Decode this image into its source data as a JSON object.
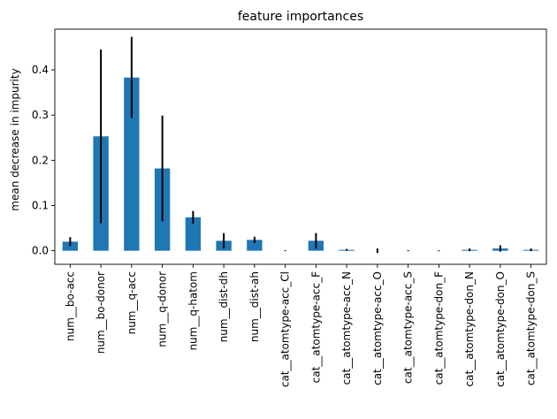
{
  "chart_data": {
    "type": "bar",
    "title": "feature importances",
    "xlabel": "",
    "ylabel": "mean decrease in impurity",
    "ylim": [
      -0.03,
      0.49
    ],
    "yticks": [
      0.0,
      0.1,
      0.2,
      0.3,
      0.4
    ],
    "ytick_labels": [
      "0.0",
      "0.1",
      "0.2",
      "0.3",
      "0.4"
    ],
    "grid": false,
    "legend": "none",
    "bar_color": "#1f77b4",
    "error_color": "#000000",
    "categories": [
      "num__bo-acc",
      "num__bo-donor",
      "num__q-acc",
      "num__q-donor",
      "num__q-hatom",
      "num__dist-dh",
      "num__dist-ah",
      "cat__atomtype-acc_Cl",
      "cat__atomtype-acc_F",
      "cat__atomtype-acc_N",
      "cat__atomtype-acc_O",
      "cat__atomtype-acc_S",
      "cat__atomtype-don_F",
      "cat__atomtype-don_N",
      "cat__atomtype-don_O",
      "cat__atomtype-don_S"
    ],
    "values": [
      0.02,
      0.253,
      0.383,
      0.182,
      0.074,
      0.022,
      0.024,
      0.0,
      0.022,
      0.002,
      0.0,
      0.0,
      0.0,
      0.002,
      0.005,
      0.002
    ],
    "errors": [
      0.01,
      0.192,
      0.09,
      0.117,
      0.014,
      0.017,
      0.007,
      0.001,
      0.017,
      0.002,
      0.005,
      0.001,
      0.001,
      0.003,
      0.007,
      0.003
    ]
  }
}
